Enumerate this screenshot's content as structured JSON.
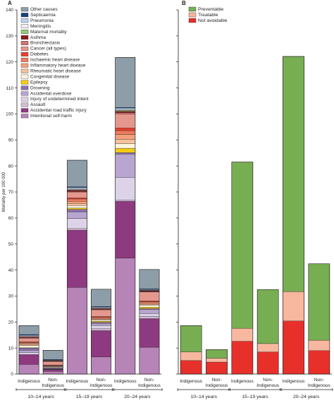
{
  "chart_data": [
    {
      "panel_label": "A",
      "type": "bar",
      "stacked": true,
      "ylabel": "Mortality per 100 000",
      "ylim": [
        0,
        140
      ],
      "yticks": [
        0,
        10,
        20,
        30,
        40,
        50,
        60,
        70,
        80,
        90,
        100,
        110,
        120,
        130,
        140
      ],
      "grid": false,
      "legend_position": "top-left",
      "categories": [
        "Indigenous",
        "Non-Indigenous",
        "Indigenous",
        "Non-Indigenous",
        "Indigenous",
        "Non-Indigenous"
      ],
      "category_labels": [
        [
          "Indigenous"
        ],
        [
          "Non-",
          "Indigenous"
        ],
        [
          "Indigenous"
        ],
        [
          "Non-",
          "Indigenous"
        ],
        [
          "Indigenous"
        ],
        [
          "Non-",
          "Indigenous"
        ]
      ],
      "groups": [
        {
          "label": "10–14 years",
          "categories": [
            0,
            1
          ]
        },
        {
          "label": "15–19 years",
          "categories": [
            2,
            3
          ]
        },
        {
          "label": "20–24 years",
          "categories": [
            4,
            5
          ]
        }
      ],
      "series": [
        {
          "name": "Intentional self-harm",
          "color": "#b784b7",
          "values": [
            3.7,
            1.0,
            33.3,
            6.6,
            44.6,
            10.3
          ]
        },
        {
          "name": "Accidental road traffic injury",
          "color": "#8e3a80",
          "values": [
            3.8,
            0.7,
            22.0,
            10.1,
            21.8,
            11.0
          ]
        },
        {
          "name": "Assault",
          "color": "#d4bcd6",
          "values": [
            0.0,
            0.1,
            0.6,
            0.7,
            0.4,
            0.8
          ]
        },
        {
          "name": "Injury of undetermined intent",
          "color": "#ddd3e8",
          "values": [
            0.8,
            0.1,
            3.9,
            1.3,
            8.8,
            1.2
          ]
        },
        {
          "name": "Accidental overdose",
          "color": "#b8a5d0",
          "values": [
            0.9,
            0.2,
            2.6,
            0.8,
            9.0,
            1.6
          ]
        },
        {
          "name": "Drowning",
          "color": "#8d70b0",
          "values": [
            0.8,
            0.3,
            0.9,
            0.4,
            0.5,
            0.3
          ]
        },
        {
          "name": "Epilepsy",
          "color": "#f2cc14",
          "values": [
            0.1,
            0.1,
            0.5,
            0.4,
            1.7,
            0.5
          ]
        },
        {
          "name": "Congenital disease",
          "color": "#fdf5dc",
          "values": [
            0.8,
            0.3,
            1.0,
            0.5,
            1.8,
            0.8
          ]
        },
        {
          "name": "Rheumatic heart disease",
          "color": "#f6c19c",
          "values": [
            0.5,
            0.2,
            0.8,
            0.3,
            1.7,
            0.3
          ]
        },
        {
          "name": "Inflammatory heart disease",
          "color": "#f3a07c",
          "values": [
            0.5,
            0.2,
            0.8,
            0.3,
            1.8,
            0.5
          ]
        },
        {
          "name": "Ischaemic heart disease",
          "color": "#ef7a5b",
          "values": [
            0.3,
            0.2,
            0.9,
            0.4,
            1.5,
            0.5
          ]
        },
        {
          "name": "Diabetes",
          "color": "#e8402e",
          "values": [
            0.2,
            0.1,
            0.4,
            0.3,
            1.0,
            0.3
          ]
        },
        {
          "name": "Cancer (all types)",
          "color": "#e4988d",
          "values": [
            1.4,
            1.3,
            2.3,
            2.6,
            5.4,
            3.5
          ]
        },
        {
          "name": "Bronchiectasis",
          "color": "#d07474",
          "values": [
            0.2,
            0.1,
            0.2,
            0.2,
            0.5,
            0.1
          ]
        },
        {
          "name": "Asthma",
          "color": "#8b1a1e",
          "values": [
            0.3,
            0.2,
            0.5,
            0.3,
            0.5,
            0.3
          ]
        },
        {
          "name": "Maternal mortality",
          "color": "#96c97c",
          "values": [
            0.0,
            0.0,
            0.2,
            0.0,
            0.4,
            0.1
          ]
        },
        {
          "name": "Meningitis",
          "color": "#f1eef6",
          "values": [
            0.3,
            0.1,
            0.3,
            0.2,
            0.3,
            0.1
          ]
        },
        {
          "name": "Pneumonia",
          "color": "#bad4ec",
          "values": [
            0.3,
            0.2,
            0.5,
            0.3,
            0.5,
            0.3
          ]
        },
        {
          "name": "Septicaemia",
          "color": "#17417a",
          "values": [
            0.3,
            0.2,
            0.3,
            0.3,
            0.3,
            0.3
          ]
        },
        {
          "name": "Other causes",
          "color": "#8d9ea8",
          "values": [
            3.4,
            3.5,
            10.2,
            6.6,
            19.2,
            7.4
          ]
        }
      ]
    },
    {
      "panel_label": "B",
      "type": "bar",
      "stacked": true,
      "ylim": [
        0,
        140
      ],
      "grid": false,
      "legend_position": "top-left",
      "categories": [
        "Indigenous",
        "Non-Indigenous",
        "Indigenous",
        "Non-Indigenous",
        "Indigenous",
        "Non-Indigenous"
      ],
      "category_labels": [
        [
          "Indigenous"
        ],
        [
          "Non-",
          "Indigenous"
        ],
        [
          "Indigenous"
        ],
        [
          "Non-",
          "Indigenous"
        ],
        [
          "Indigenous"
        ],
        [
          "Non-",
          "Indigenous"
        ]
      ],
      "groups": [
        {
          "label": "10–14 years",
          "categories": [
            0,
            1
          ]
        },
        {
          "label": "15–19 years",
          "categories": [
            2,
            3
          ]
        },
        {
          "label": "20–24 years",
          "categories": [
            4,
            5
          ]
        }
      ],
      "series": [
        {
          "name": "Not avoidable",
          "color": "#e8302b",
          "values": [
            5.2,
            4.6,
            12.6,
            8.5,
            20.4,
            9.0
          ]
        },
        {
          "name": "Treatable",
          "color": "#f8b79f",
          "values": [
            3.3,
            1.5,
            5.0,
            3.2,
            11.3,
            4.0
          ]
        },
        {
          "name": "Preventable",
          "color": "#78ae52",
          "values": [
            10.1,
            3.3,
            63.9,
            20.8,
            90.4,
            29.4
          ]
        }
      ]
    }
  ]
}
